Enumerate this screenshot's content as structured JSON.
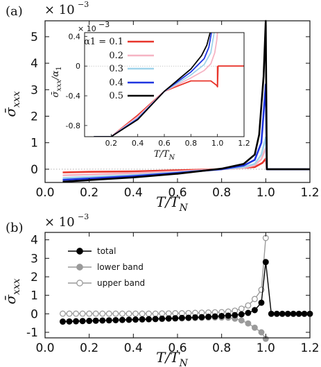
{
  "panel_labels": {
    "a": "(a)",
    "b": "(b)"
  },
  "colors": {
    "red": "#e8352b",
    "pink": "#f6b3c3",
    "lightblue": "#9fd3ea",
    "blue": "#1f35e0",
    "black": "#000000",
    "gray": "#9a9a9a",
    "dotted": "#b0b0b0"
  },
  "chart_data": [
    {
      "id": "panel-a-main",
      "type": "line",
      "title": "",
      "xlabel": "T/T_N",
      "ylabel": "σ̄_xxx",
      "scale_label": "× 10",
      "scale_exponent": "−3",
      "xlim": [
        0.0,
        1.2
      ],
      "ylim": [
        -0.5,
        5.6
      ],
      "xticks": [
        "0.0",
        "0.2",
        "0.4",
        "0.6",
        "0.8",
        "1.0",
        "1.2"
      ],
      "yticks": [
        "0",
        "1",
        "2",
        "3",
        "4",
        "5"
      ],
      "series": [
        {
          "name": "α1 = 0.1",
          "color": "#e8352b",
          "x": [
            0.08,
            0.2,
            0.4,
            0.6,
            0.8,
            0.95,
            0.985,
            1.0,
            1.005,
            1.2
          ],
          "y": [
            -0.12,
            -0.1,
            -0.08,
            -0.04,
            0.0,
            0.08,
            0.24,
            0.4,
            0.0,
            0.0
          ]
        },
        {
          "name": "0.2",
          "color": "#f6b3c3",
          "x": [
            0.08,
            0.2,
            0.4,
            0.6,
            0.8,
            0.9,
            0.95,
            0.98,
            1.0,
            1.005,
            1.2
          ],
          "y": [
            -0.23,
            -0.2,
            -0.15,
            -0.08,
            0.0,
            0.05,
            0.15,
            0.38,
            0.8,
            0.0,
            0.0
          ]
        },
        {
          "name": "0.3",
          "color": "#9fd3ea",
          "x": [
            0.08,
            0.2,
            0.4,
            0.6,
            0.8,
            0.9,
            0.95,
            0.98,
            1.0,
            1.005,
            1.2
          ],
          "y": [
            -0.33,
            -0.29,
            -0.22,
            -0.12,
            0.0,
            0.08,
            0.2,
            0.55,
            1.2,
            0.0,
            0.0
          ]
        },
        {
          "name": "0.4",
          "color": "#1f35e0",
          "x": [
            0.08,
            0.2,
            0.4,
            0.6,
            0.8,
            0.9,
            0.95,
            0.98,
            1.0,
            1.005,
            1.2
          ],
          "y": [
            -0.4,
            -0.35,
            -0.26,
            -0.14,
            0.0,
            0.14,
            0.35,
            1.0,
            3.2,
            0.0,
            0.0
          ]
        },
        {
          "name": "0.5",
          "color": "#000000",
          "x": [
            0.08,
            0.2,
            0.4,
            0.6,
            0.8,
            0.9,
            0.95,
            0.97,
            0.99,
            1.0,
            1.005,
            1.2
          ],
          "y": [
            -0.47,
            -0.41,
            -0.31,
            -0.17,
            0.02,
            0.2,
            0.55,
            1.3,
            3.5,
            5.6,
            0.0,
            0.0
          ]
        }
      ]
    },
    {
      "id": "panel-a-inset",
      "type": "line",
      "title": "",
      "xlabel": "T/T_N",
      "ylabel": "σ̄_xxx/α1",
      "scale_label": "× 10",
      "scale_exponent": "−3",
      "xlim": [
        0.0,
        1.2
      ],
      "ylim": [
        -0.95,
        0.45
      ],
      "xticks": [
        "0.2",
        "0.4",
        "0.6",
        "0.8",
        "1.0",
        "1.2"
      ],
      "yticks": [
        "0.4",
        "0",
        "-0.4",
        "-0.8"
      ],
      "series": [
        {
          "name": "α1 = 0.1",
          "color": "#e8352b",
          "x": [
            0.07,
            0.2,
            0.4,
            0.6,
            0.8,
            0.95,
            0.995,
            1.0,
            1.005,
            1.2
          ],
          "y": [
            -1.2,
            -1.0,
            -0.66,
            -0.34,
            -0.2,
            -0.2,
            -0.26,
            -0.28,
            0.0,
            0.0
          ]
        },
        {
          "name": "0.2",
          "color": "#f6b3c3",
          "x": [
            0.07,
            0.2,
            0.4,
            0.6,
            0.8,
            0.9,
            0.95,
            0.98,
            0.995,
            1.0
          ],
          "y": [
            -1.18,
            -1.0,
            -0.68,
            -0.34,
            -0.16,
            -0.06,
            0.03,
            0.18,
            0.35,
            0.45
          ]
        },
        {
          "name": "0.3",
          "color": "#9fd3ea",
          "x": [
            0.07,
            0.2,
            0.4,
            0.6,
            0.8,
            0.9,
            0.95,
            0.975
          ],
          "y": [
            -1.18,
            -1.0,
            -0.7,
            -0.34,
            -0.12,
            0.02,
            0.18,
            0.45
          ]
        },
        {
          "name": "0.4",
          "color": "#1f35e0",
          "x": [
            0.07,
            0.2,
            0.4,
            0.6,
            0.8,
            0.9,
            0.935,
            0.955
          ],
          "y": [
            -1.18,
            -1.01,
            -0.71,
            -0.34,
            -0.08,
            0.1,
            0.25,
            0.45
          ]
        },
        {
          "name": "0.5",
          "color": "#000000",
          "x": [
            0.07,
            0.2,
            0.4,
            0.6,
            0.8,
            0.88,
            0.92,
            0.945
          ],
          "y": [
            -1.18,
            -1.02,
            -0.72,
            -0.34,
            -0.04,
            0.14,
            0.28,
            0.45
          ]
        }
      ]
    },
    {
      "id": "panel-b",
      "type": "scatter",
      "title": "",
      "xlabel": "T/T_N",
      "ylabel": "σ̄_xxx",
      "scale_label": "× 10",
      "scale_exponent": "−3",
      "xlim": [
        0.0,
        1.2
      ],
      "ylim": [
        -1.3,
        4.4
      ],
      "xticks": [
        "0.0",
        "0.2",
        "0.4",
        "0.6",
        "0.8",
        "1.0",
        "1.2"
      ],
      "yticks": [
        "4",
        "3",
        "2",
        "1",
        "0",
        "-1"
      ],
      "series": [
        {
          "name": "total",
          "marker": "filled-black",
          "x": [
            0.08,
            0.11,
            0.14,
            0.17,
            0.2,
            0.23,
            0.26,
            0.29,
            0.32,
            0.35,
            0.38,
            0.41,
            0.44,
            0.47,
            0.5,
            0.53,
            0.56,
            0.59,
            0.62,
            0.65,
            0.68,
            0.71,
            0.74,
            0.77,
            0.8,
            0.83,
            0.86,
            0.89,
            0.92,
            0.95,
            0.98,
            1.0,
            1.025,
            1.05,
            1.075,
            1.1,
            1.125,
            1.15,
            1.175,
            1.2
          ],
          "y": [
            -0.42,
            -0.41,
            -0.4,
            -0.39,
            -0.38,
            -0.37,
            -0.36,
            -0.35,
            -0.34,
            -0.33,
            -0.32,
            -0.31,
            -0.3,
            -0.29,
            -0.28,
            -0.26,
            -0.25,
            -0.24,
            -0.22,
            -0.21,
            -0.19,
            -0.18,
            -0.16,
            -0.14,
            -0.12,
            -0.1,
            -0.07,
            -0.03,
            0.05,
            0.2,
            0.6,
            2.8,
            0.0,
            0.0,
            0.0,
            0.0,
            0.0,
            0.0,
            0.0,
            0.0
          ]
        },
        {
          "name": "lower band",
          "marker": "filled-gray",
          "x": [
            0.08,
            0.11,
            0.14,
            0.17,
            0.2,
            0.23,
            0.26,
            0.29,
            0.32,
            0.35,
            0.38,
            0.41,
            0.44,
            0.47,
            0.5,
            0.53,
            0.56,
            0.59,
            0.62,
            0.65,
            0.68,
            0.71,
            0.74,
            0.77,
            0.8,
            0.83,
            0.86,
            0.89,
            0.92,
            0.95,
            0.98,
            1.0
          ],
          "y": [
            -0.43,
            -0.42,
            -0.41,
            -0.4,
            -0.39,
            -0.38,
            -0.37,
            -0.36,
            -0.35,
            -0.34,
            -0.33,
            -0.32,
            -0.31,
            -0.3,
            -0.29,
            -0.28,
            -0.27,
            -0.26,
            -0.25,
            -0.24,
            -0.23,
            -0.22,
            -0.21,
            -0.2,
            -0.2,
            -0.21,
            -0.26,
            -0.36,
            -0.52,
            -0.75,
            -1.0,
            -1.35
          ]
        },
        {
          "name": "upper band",
          "marker": "open-gray",
          "x": [
            0.08,
            0.11,
            0.14,
            0.17,
            0.2,
            0.23,
            0.26,
            0.29,
            0.32,
            0.35,
            0.38,
            0.41,
            0.44,
            0.47,
            0.5,
            0.53,
            0.56,
            0.59,
            0.62,
            0.65,
            0.68,
            0.71,
            0.74,
            0.77,
            0.8,
            0.83,
            0.86,
            0.89,
            0.92,
            0.95,
            0.98,
            1.0
          ],
          "y": [
            0.01,
            0.01,
            0.01,
            0.01,
            0.01,
            0.01,
            0.01,
            0.01,
            0.01,
            0.01,
            0.01,
            0.01,
            0.01,
            0.01,
            0.01,
            0.02,
            0.02,
            0.03,
            0.03,
            0.04,
            0.05,
            0.06,
            0.07,
            0.08,
            0.09,
            0.12,
            0.17,
            0.28,
            0.45,
            0.8,
            1.3,
            4.1
          ]
        }
      ]
    }
  ]
}
